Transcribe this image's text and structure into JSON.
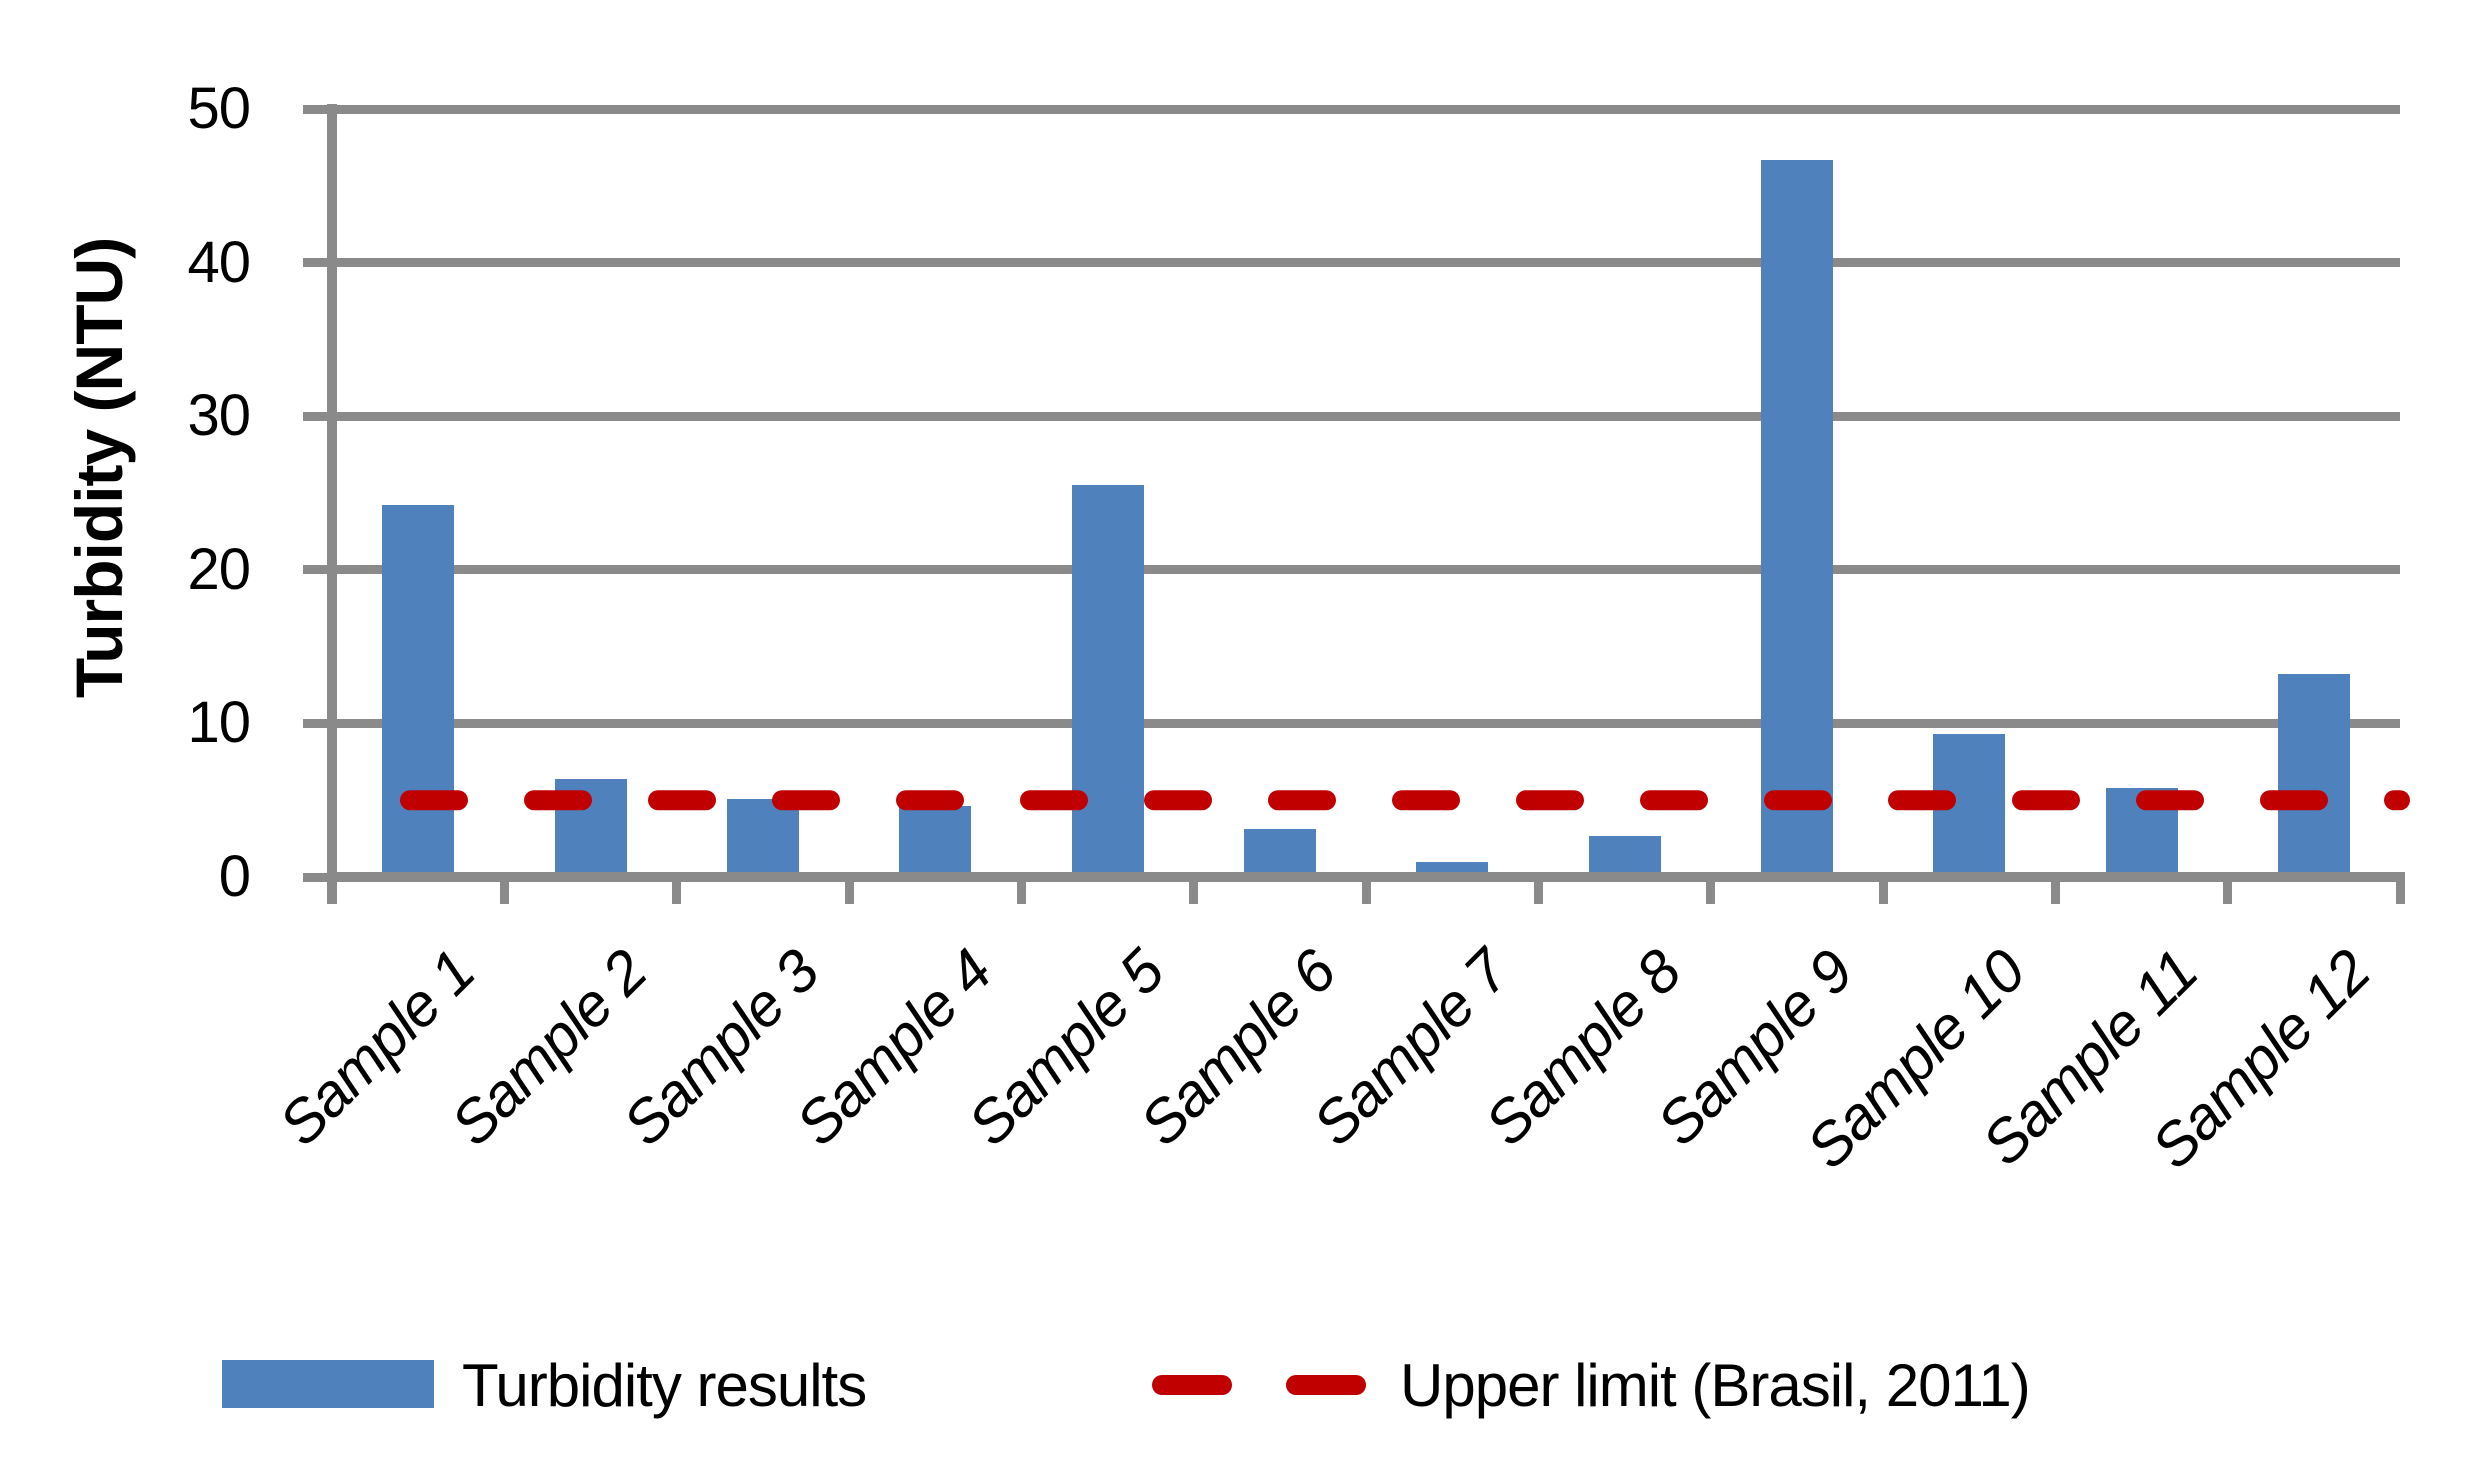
{
  "chart_data": {
    "type": "bar",
    "title": "",
    "categories": [
      "Sample 1",
      "Sample 2",
      "Sample 3",
      "Sample 4",
      "Sample 5",
      "Sample 6",
      "Sample 7",
      "Sample 8",
      "Sample 9",
      "Sample 10",
      "Sample 11",
      "Sample 12"
    ],
    "series": [
      {
        "name": "Turbidity results",
        "color": "#4F81BD",
        "values": [
          24.2,
          6.4,
          5.1,
          4.6,
          25.5,
          3.1,
          1.0,
          2.7,
          46.7,
          9.3,
          5.8,
          13.2
        ]
      }
    ],
    "limit_line": {
      "name": "Upper limit (Brasil, 2011)",
      "value": 5,
      "color": "#C00000",
      "style": "dashed"
    },
    "xlabel": "",
    "ylabel": "Turbidity (NTU)",
    "ylim": [
      0,
      50
    ],
    "yticks": [
      0,
      10,
      20,
      30,
      40,
      50
    ],
    "grid": true,
    "legend_position": "bottom"
  },
  "colors": {
    "bar": "#4F81BD",
    "limit": "#C00000",
    "axis": "#8A8A8A",
    "text": "#000000",
    "background": "#FFFFFF"
  },
  "legend": {
    "items": [
      {
        "label": "Turbidity results",
        "swatch": "blue-rect"
      },
      {
        "label": "Upper limit (Brasil, 2011)",
        "swatch": "red-dashes"
      }
    ]
  }
}
